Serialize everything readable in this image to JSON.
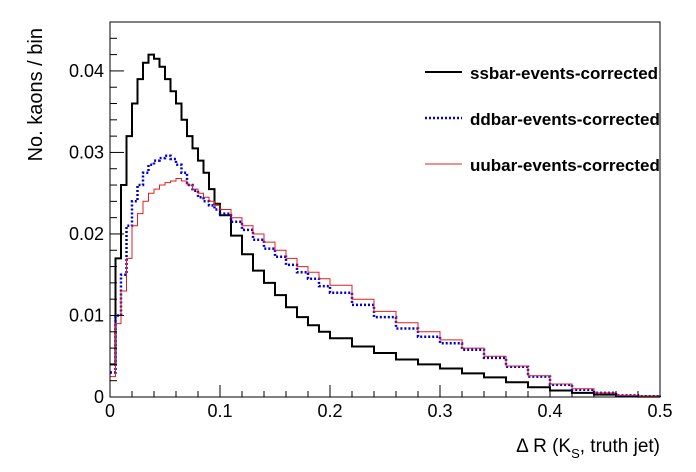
{
  "chart_data": {
    "type": "line",
    "style": "step-histogram",
    "xlabel": "Δ R (K_S, truth jet)",
    "xlabel_parts": {
      "main": "Δ R (K",
      "sub": "S",
      "tail": ", truth jet)"
    },
    "ylabel": "No. kaons / bin",
    "xlim": [
      0,
      0.5
    ],
    "ylim": [
      0,
      0.046
    ],
    "x_ticks": [
      "0",
      "0.1",
      "0.2",
      "0.3",
      "0.4",
      "0.5"
    ],
    "y_ticks": [
      "0",
      "0.01",
      "0.02",
      "0.03",
      "0.04"
    ],
    "x_tick_values": [
      0,
      0.1,
      0.2,
      0.3,
      0.4,
      0.5
    ],
    "y_tick_values": [
      0,
      0.01,
      0.02,
      0.03,
      0.04
    ],
    "grid": false,
    "legend_position": "top-right",
    "series": [
      {
        "name": "ssbar-events-corrected",
        "color": "#000000",
        "dash": "solid",
        "width": 2,
        "x": [
          0,
          0.005,
          0.01,
          0.015,
          0.02,
          0.025,
          0.03,
          0.035,
          0.04,
          0.045,
          0.05,
          0.055,
          0.06,
          0.065,
          0.07,
          0.075,
          0.08,
          0.085,
          0.09,
          0.095,
          0.1,
          0.11,
          0.12,
          0.13,
          0.14,
          0.15,
          0.16,
          0.17,
          0.18,
          0.19,
          0.2,
          0.22,
          0.24,
          0.26,
          0.28,
          0.3,
          0.32,
          0.34,
          0.36,
          0.38,
          0.4,
          0.42,
          0.44,
          0.46,
          0.48,
          0.5
        ],
        "values": [
          0.004,
          0.017,
          0.026,
          0.032,
          0.036,
          0.039,
          0.041,
          0.042,
          0.0415,
          0.0405,
          0.039,
          0.0375,
          0.036,
          0.034,
          0.032,
          0.0305,
          0.029,
          0.0275,
          0.0255,
          0.0237,
          0.0223,
          0.0198,
          0.0175,
          0.0155,
          0.014,
          0.0125,
          0.011,
          0.0098,
          0.0088,
          0.008,
          0.0072,
          0.0062,
          0.0054,
          0.0046,
          0.004,
          0.0035,
          0.0029,
          0.0024,
          0.0018,
          0.0012,
          0.0008,
          0.0005,
          0.0003,
          0.0001,
          5e-05,
          0.0
        ]
      },
      {
        "name": "ddbar-events-corrected",
        "color": "#0000cc",
        "dash": "dotted",
        "width": 2.5,
        "x": [
          0,
          0.005,
          0.01,
          0.015,
          0.02,
          0.025,
          0.03,
          0.035,
          0.04,
          0.045,
          0.05,
          0.055,
          0.06,
          0.065,
          0.07,
          0.075,
          0.08,
          0.085,
          0.09,
          0.095,
          0.1,
          0.11,
          0.12,
          0.13,
          0.14,
          0.15,
          0.16,
          0.17,
          0.18,
          0.19,
          0.2,
          0.22,
          0.24,
          0.26,
          0.28,
          0.3,
          0.32,
          0.34,
          0.36,
          0.38,
          0.4,
          0.42,
          0.44,
          0.46,
          0.48,
          0.5
        ],
        "values": [
          0.003,
          0.01,
          0.015,
          0.021,
          0.024,
          0.026,
          0.0275,
          0.0285,
          0.029,
          0.0293,
          0.0296,
          0.0292,
          0.0285,
          0.0275,
          0.026,
          0.0253,
          0.0245,
          0.024,
          0.0235,
          0.023,
          0.0225,
          0.0215,
          0.0205,
          0.0193,
          0.0182,
          0.0172,
          0.0162,
          0.0153,
          0.0145,
          0.0136,
          0.0128,
          0.0113,
          0.0098,
          0.0084,
          0.0074,
          0.0066,
          0.0058,
          0.0048,
          0.0037,
          0.0025,
          0.0015,
          0.0009,
          0.0005,
          0.0002,
          0.0001,
          0.0
        ]
      },
      {
        "name": "uubar-events-corrected",
        "color": "#e02020",
        "dash": "solid",
        "width": 1,
        "x": [
          0,
          0.005,
          0.01,
          0.015,
          0.02,
          0.025,
          0.03,
          0.035,
          0.04,
          0.045,
          0.05,
          0.055,
          0.06,
          0.065,
          0.07,
          0.075,
          0.08,
          0.085,
          0.09,
          0.095,
          0.1,
          0.11,
          0.12,
          0.13,
          0.14,
          0.15,
          0.16,
          0.17,
          0.18,
          0.19,
          0.2,
          0.22,
          0.24,
          0.26,
          0.28,
          0.3,
          0.32,
          0.34,
          0.36,
          0.38,
          0.4,
          0.42,
          0.44,
          0.46,
          0.48,
          0.5
        ],
        "values": [
          0.0025,
          0.009,
          0.013,
          0.017,
          0.021,
          0.0225,
          0.024,
          0.025,
          0.0255,
          0.026,
          0.0263,
          0.0265,
          0.0268,
          0.0265,
          0.026,
          0.0255,
          0.025,
          0.0245,
          0.024,
          0.0235,
          0.023,
          0.022,
          0.021,
          0.02,
          0.019,
          0.018,
          0.017,
          0.016,
          0.0153,
          0.0145,
          0.0137,
          0.012,
          0.0105,
          0.0091,
          0.008,
          0.007,
          0.006,
          0.005,
          0.0038,
          0.0026,
          0.0016,
          0.001,
          0.0005,
          0.0002,
          0.0001,
          0.0
        ]
      }
    ]
  }
}
